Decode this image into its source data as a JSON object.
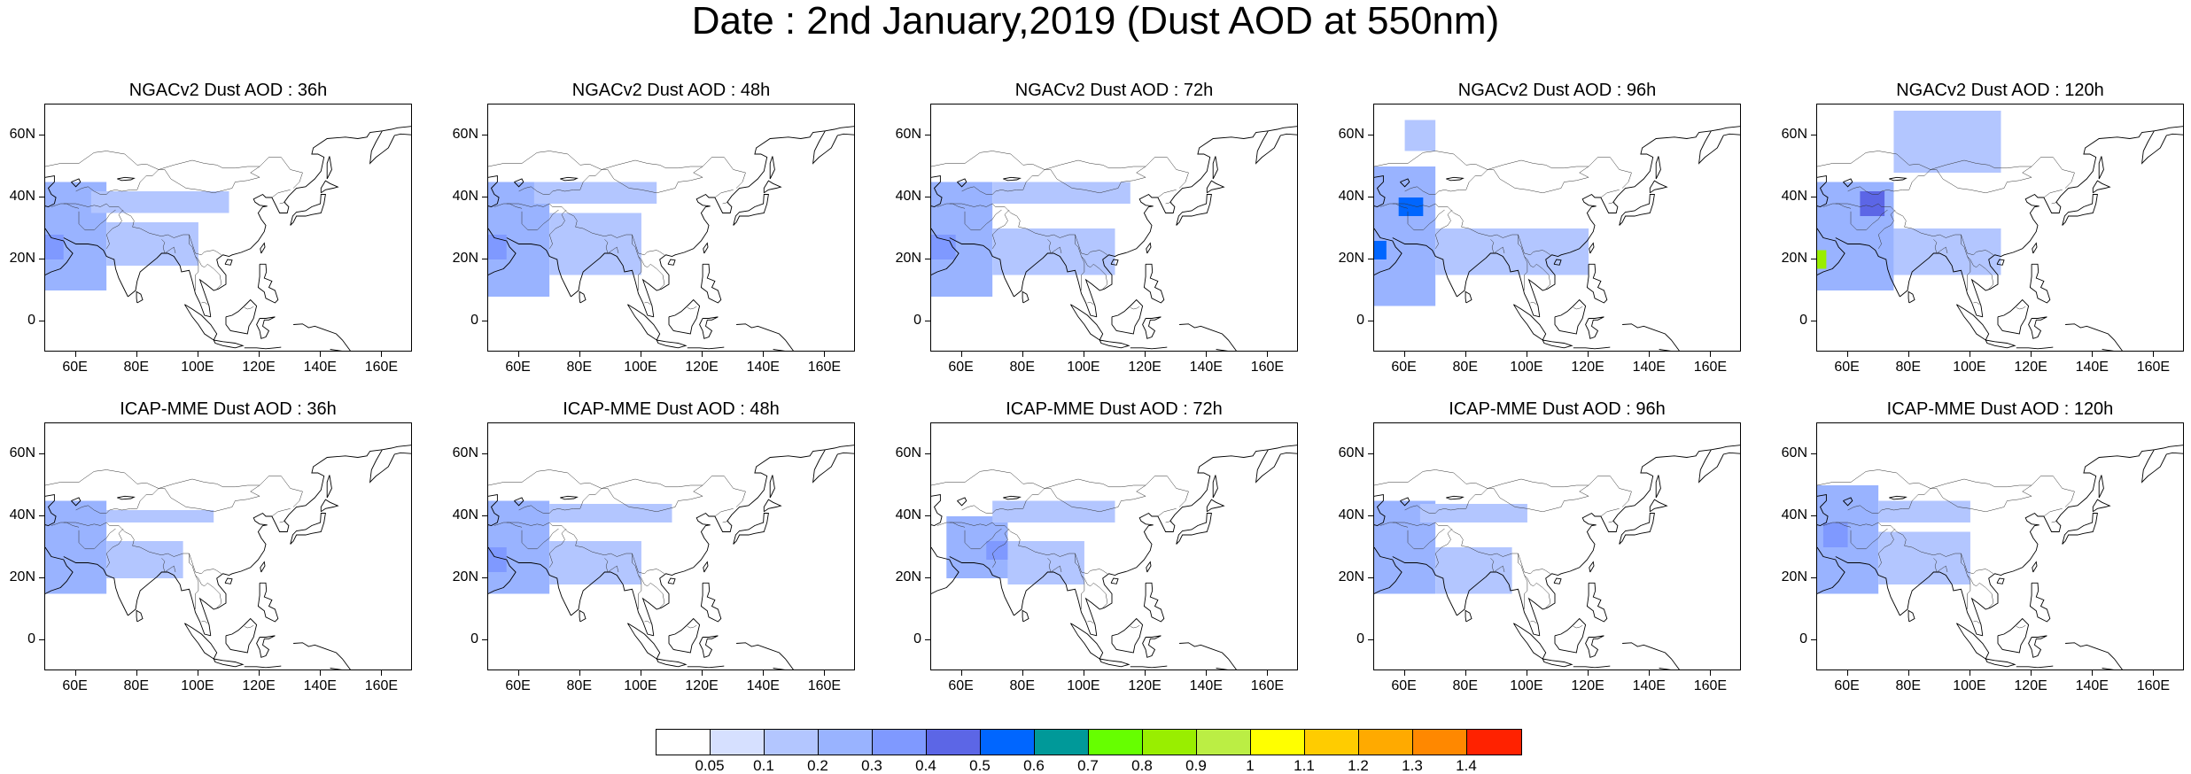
{
  "title": "Date : 2nd January,2019 (Dust AOD at 550nm)",
  "panels": [
    {
      "title": "NGACv2 Dust AOD : 36h"
    },
    {
      "title": "NGACv2 Dust AOD : 48h"
    },
    {
      "title": "NGACv2 Dust AOD : 72h"
    },
    {
      "title": "NGACv2 Dust AOD : 96h"
    },
    {
      "title": "NGACv2 Dust AOD : 120h"
    },
    {
      "title": "ICAP-MME Dust AOD : 36h"
    },
    {
      "title": "ICAP-MME Dust AOD : 48h"
    },
    {
      "title": "ICAP-MME Dust AOD : 72h"
    },
    {
      "title": "ICAP-MME Dust AOD : 96h"
    },
    {
      "title": "ICAP-MME Dust AOD : 120h"
    }
  ],
  "axes": {
    "lat_ticks": [
      "60N",
      "40N",
      "20N",
      "0"
    ],
    "lon_ticks": [
      "60E",
      "80E",
      "100E",
      "120E",
      "140E",
      "160E"
    ],
    "lat_range": [
      -10,
      70
    ],
    "lon_range": [
      50,
      170
    ]
  },
  "colorbar": {
    "labels": [
      "0.05",
      "0.1",
      "0.2",
      "0.3",
      "0.4",
      "0.5",
      "0.6",
      "0.7",
      "0.8",
      "0.9",
      "1",
      "1.1",
      "1.2",
      "1.3",
      "1.4"
    ],
    "colors": [
      "#ffffff",
      "#d6e0ff",
      "#b3c6ff",
      "#99b3ff",
      "#7f99ff",
      "#5c66e6",
      "#0066ff",
      "#009999",
      "#66ff00",
      "#99ee00",
      "#bbee44",
      "#ffff00",
      "#ffcc00",
      "#ffaa00",
      "#ff8800",
      "#ff2200"
    ]
  },
  "chart_data": {
    "type": "heatmap",
    "variable": "Dust AOD at 550nm",
    "lat_range": [
      -10,
      70
    ],
    "lon_range": [
      50,
      170
    ],
    "levels": [
      0.05,
      0.1,
      0.2,
      0.3,
      0.4,
      0.5,
      0.6,
      0.7,
      0.8,
      0.9,
      1,
      1.1,
      1.2,
      1.3,
      1.4
    ],
    "panels": [
      {
        "model": "NGACv2",
        "lead": "36h",
        "dust_regions": [
          {
            "lon": [
              50,
              70
            ],
            "lat": [
              10,
              45
            ],
            "aod": 0.2
          },
          {
            "lon": [
              50,
              56
            ],
            "lat": [
              20,
              28
            ],
            "aod": 0.3
          },
          {
            "lon": [
              70,
              100
            ],
            "lat": [
              18,
              32
            ],
            "aod": 0.1
          },
          {
            "lon": [
              65,
              110
            ],
            "lat": [
              35,
              42
            ],
            "aod": 0.1
          }
        ]
      },
      {
        "model": "NGACv2",
        "lead": "48h",
        "dust_regions": [
          {
            "lon": [
              50,
              70
            ],
            "lat": [
              8,
              45
            ],
            "aod": 0.2
          },
          {
            "lon": [
              50,
              56
            ],
            "lat": [
              20,
              28
            ],
            "aod": 0.3
          },
          {
            "lon": [
              70,
              100
            ],
            "lat": [
              15,
              35
            ],
            "aod": 0.1
          },
          {
            "lon": [
              65,
              105
            ],
            "lat": [
              38,
              45
            ],
            "aod": 0.1
          }
        ]
      },
      {
        "model": "NGACv2",
        "lead": "72h",
        "dust_regions": [
          {
            "lon": [
              50,
              70
            ],
            "lat": [
              8,
              45
            ],
            "aod": 0.2
          },
          {
            "lon": [
              50,
              58
            ],
            "lat": [
              20,
              28
            ],
            "aod": 0.3
          },
          {
            "lon": [
              70,
              110
            ],
            "lat": [
              15,
              30
            ],
            "aod": 0.1
          },
          {
            "lon": [
              70,
              115
            ],
            "lat": [
              38,
              45
            ],
            "aod": 0.1
          }
        ]
      },
      {
        "model": "NGACv2",
        "lead": "96h",
        "dust_regions": [
          {
            "lon": [
              50,
              70
            ],
            "lat": [
              5,
              50
            ],
            "aod": 0.2
          },
          {
            "lon": [
              58,
              66
            ],
            "lat": [
              34,
              40
            ],
            "aod": 0.5
          },
          {
            "lon": [
              50,
              54
            ],
            "lat": [
              20,
              26
            ],
            "aod": 0.5
          },
          {
            "lon": [
              70,
              120
            ],
            "lat": [
              15,
              30
            ],
            "aod": 0.1
          },
          {
            "lon": [
              60,
              70
            ],
            "lat": [
              55,
              65
            ],
            "aod": 0.1
          }
        ]
      },
      {
        "model": "NGACv2",
        "lead": "120h",
        "dust_regions": [
          {
            "lon": [
              50,
              75
            ],
            "lat": [
              10,
              45
            ],
            "aod": 0.2
          },
          {
            "lon": [
              64,
              72
            ],
            "lat": [
              34,
              42
            ],
            "aod": 0.4
          },
          {
            "lon": [
              50,
              53
            ],
            "lat": [
              17,
              23
            ],
            "aod": 0.8
          },
          {
            "lon": [
              75,
              110
            ],
            "lat": [
              15,
              30
            ],
            "aod": 0.1
          },
          {
            "lon": [
              75,
              110
            ],
            "lat": [
              48,
              68
            ],
            "aod": 0.1
          }
        ]
      },
      {
        "model": "ICAP-MME",
        "lead": "36h",
        "dust_regions": [
          {
            "lon": [
              50,
              70
            ],
            "lat": [
              15,
              45
            ],
            "aod": 0.2
          },
          {
            "lon": [
              70,
              95
            ],
            "lat": [
              20,
              32
            ],
            "aod": 0.1
          },
          {
            "lon": [
              70,
              105
            ],
            "lat": [
              38,
              42
            ],
            "aod": 0.1
          }
        ]
      },
      {
        "model": "ICAP-MME",
        "lead": "48h",
        "dust_regions": [
          {
            "lon": [
              50,
              70
            ],
            "lat": [
              15,
              45
            ],
            "aod": 0.2
          },
          {
            "lon": [
              50,
              56
            ],
            "lat": [
              22,
              30
            ],
            "aod": 0.3
          },
          {
            "lon": [
              70,
              100
            ],
            "lat": [
              18,
              32
            ],
            "aod": 0.1
          },
          {
            "lon": [
              70,
              110
            ],
            "lat": [
              38,
              44
            ],
            "aod": 0.1
          }
        ]
      },
      {
        "model": "ICAP-MME",
        "lead": "72h",
        "dust_regions": [
          {
            "lon": [
              55,
              75
            ],
            "lat": [
              20,
              40
            ],
            "aod": 0.2
          },
          {
            "lon": [
              68,
              76
            ],
            "lat": [
              26,
              32
            ],
            "aod": 0.3
          },
          {
            "lon": [
              75,
              100
            ],
            "lat": [
              18,
              32
            ],
            "aod": 0.1
          },
          {
            "lon": [
              70,
              110
            ],
            "lat": [
              38,
              45
            ],
            "aod": 0.1
          }
        ]
      },
      {
        "model": "ICAP-MME",
        "lead": "96h",
        "dust_regions": [
          {
            "lon": [
              50,
              70
            ],
            "lat": [
              15,
              45
            ],
            "aod": 0.2
          },
          {
            "lon": [
              70,
              95
            ],
            "lat": [
              15,
              30
            ],
            "aod": 0.1
          },
          {
            "lon": [
              65,
              100
            ],
            "lat": [
              38,
              44
            ],
            "aod": 0.1
          }
        ]
      },
      {
        "model": "ICAP-MME",
        "lead": "120h",
        "dust_regions": [
          {
            "lon": [
              50,
              70
            ],
            "lat": [
              15,
              50
            ],
            "aod": 0.2
          },
          {
            "lon": [
              52,
              60
            ],
            "lat": [
              30,
              38
            ],
            "aod": 0.3
          },
          {
            "lon": [
              70,
              100
            ],
            "lat": [
              18,
              35
            ],
            "aod": 0.1
          },
          {
            "lon": [
              70,
              100
            ],
            "lat": [
              38,
              45
            ],
            "aod": 0.1
          }
        ]
      }
    ]
  }
}
